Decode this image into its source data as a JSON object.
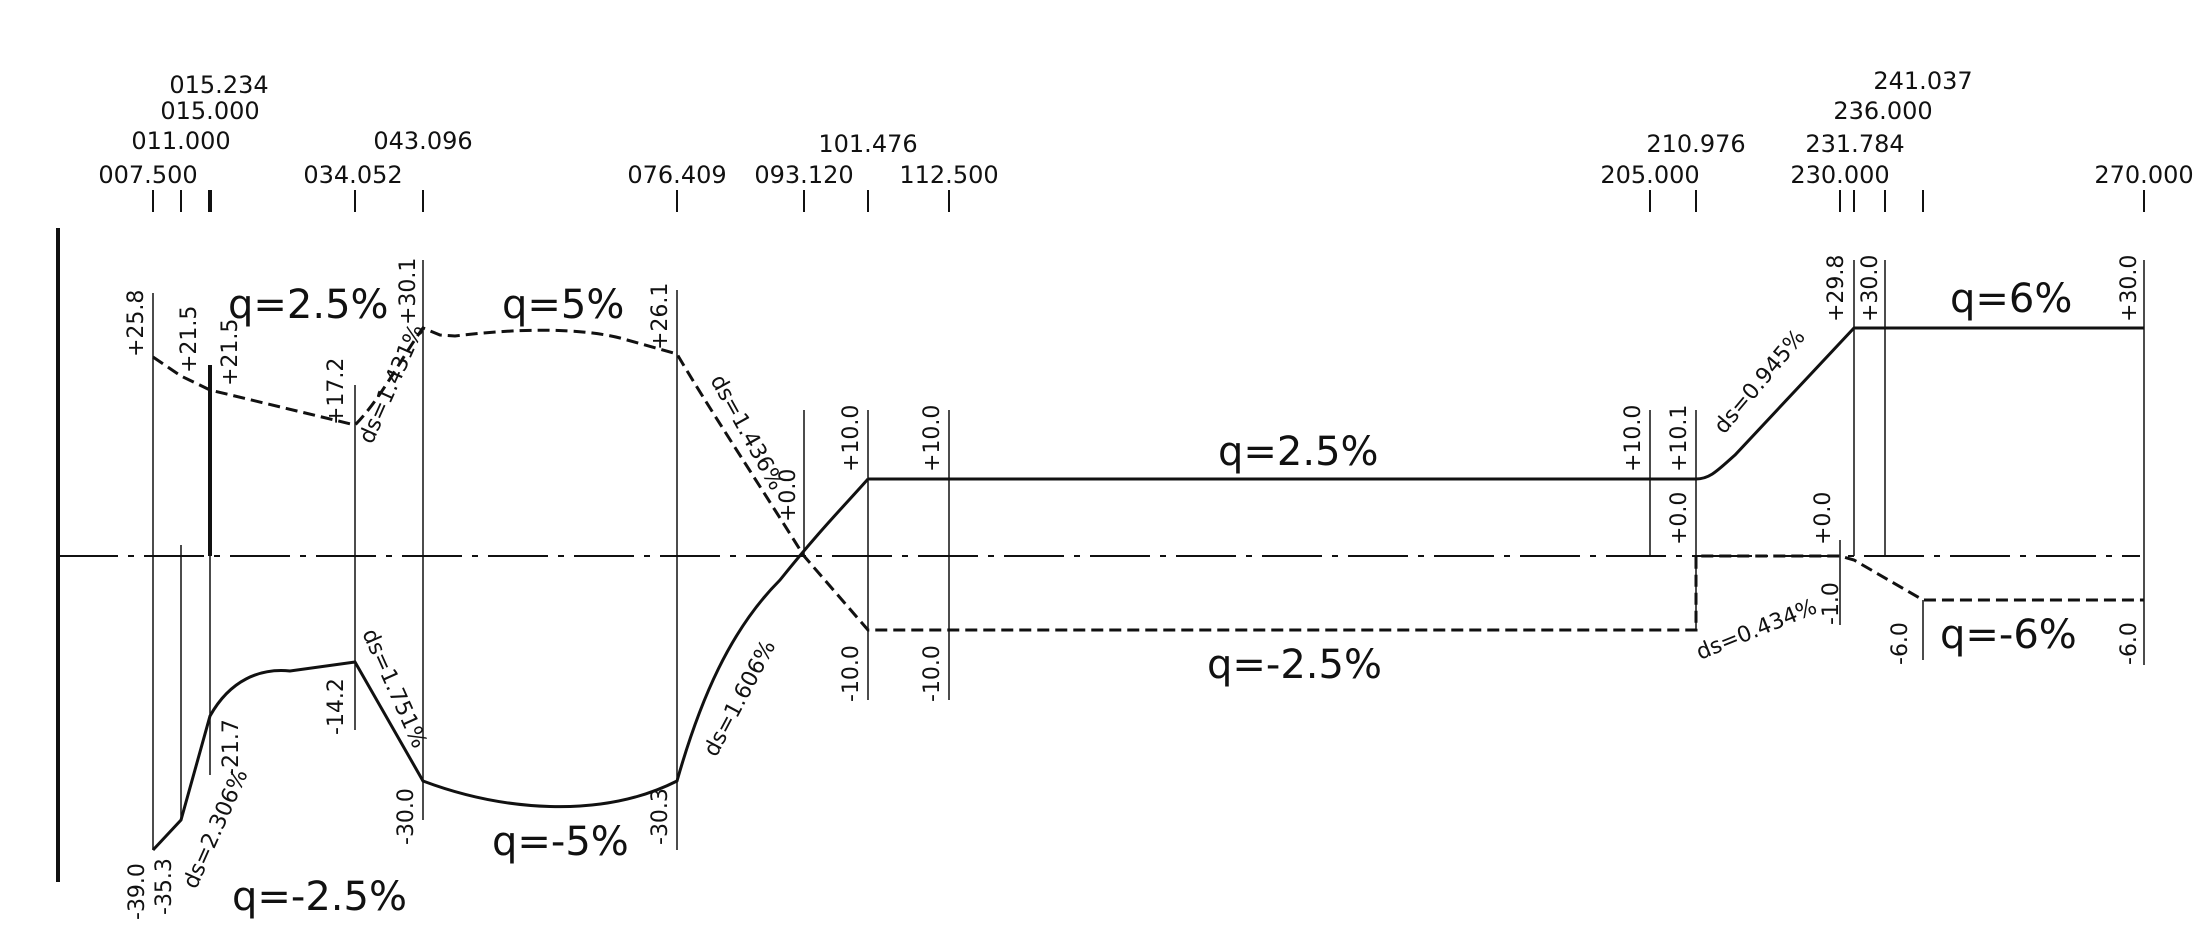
{
  "stations": [
    "007.500",
    "011.000",
    "015.000",
    "015.234",
    "034.052",
    "043.096",
    "076.409",
    "093.120",
    "101.476",
    "112.500",
    "205.000",
    "210.976",
    "230.000",
    "231.784",
    "236.000",
    "241.037",
    "270.000"
  ],
  "values": {
    "v1": "+25.8",
    "v2": "+21.5",
    "v3": "+21.5",
    "v4": "+17.2",
    "v5": "+30.1",
    "v6": "+26.1",
    "v7": "+10.0",
    "v8": "+0.0",
    "v9": "+10.0",
    "v10": "+10.0",
    "v11": "+0.0",
    "v12": "+10.1",
    "v13": "+29.8",
    "v14": "+0.0",
    "v15": "+30.0",
    "v16": "+30.0",
    "v17": "-39.0",
    "v18": "-35.3",
    "v19": "-21.7",
    "v20": "-14.2",
    "v21": "-30.0",
    "v22": "-30.3",
    "v23": "-10.0",
    "v24": "-10.0",
    "v25": "-1.0",
    "v26": "-6.0",
    "v27": "-6.0"
  },
  "slopes": {
    "s1": "ds=1.431%",
    "s2": "ds=1.436%",
    "s3": "ds=0.945%",
    "s4": "ds=2.306%",
    "s5": "ds=1.751%",
    "s6": "ds=1.606%",
    "s7": "ds=0.434%"
  },
  "cross_slopes": {
    "q1": "q=2.5%",
    "q2": "q=5%",
    "q3": "q=2.5%",
    "q4": "q=6%",
    "q5": "q=-2.5%",
    "q6": "q=-5%",
    "q7": "q=-2.5%",
    "q8": "q=-6%"
  }
}
